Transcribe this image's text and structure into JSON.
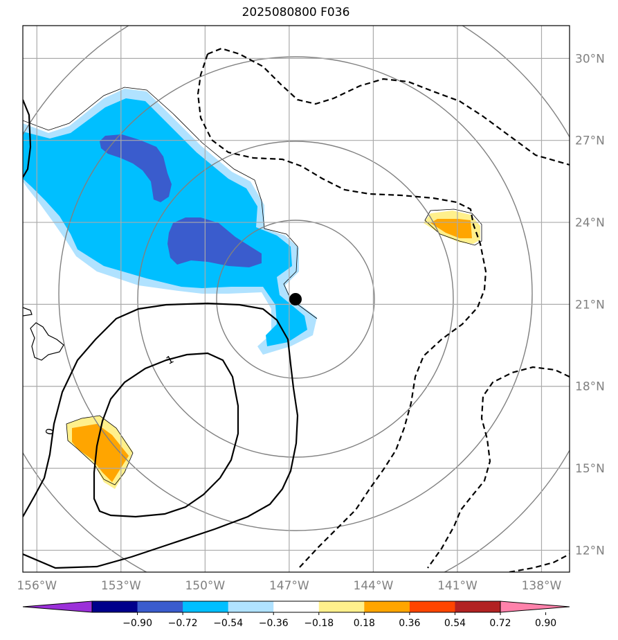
{
  "title": "2025080800 F036",
  "chart_data": {
    "type": "map",
    "title": "2025080800 F036",
    "lon_range": [
      -156.5,
      -137.0
    ],
    "lat_range": [
      11.2,
      31.2
    ],
    "lon_ticks": [
      -156,
      -153,
      -150,
      -147,
      -144,
      -141,
      -138
    ],
    "lon_tick_labels": [
      "156°W",
      "153°W",
      "150°W",
      "147°W",
      "144°W",
      "141°W",
      "138°W"
    ],
    "lat_ticks": [
      12,
      15,
      18,
      21,
      24,
      27,
      30
    ],
    "lat_tick_labels": [
      "12°N",
      "15°N",
      "18°N",
      "21°N",
      "24°N",
      "27°N",
      "30°N"
    ],
    "grid": true,
    "center_marker": {
      "lon": -146.7,
      "lat": 21.2
    },
    "range_rings": {
      "count": 4,
      "center_lon": -146.7,
      "center_lat": 21.2
    },
    "contour_labels": [
      "1",
      "0"
    ],
    "colorbar": {
      "ticks": [
        "−0.90",
        "−0.72",
        "−0.54",
        "−0.36",
        "−0.18",
        "0.18",
        "0.36",
        "0.54",
        "0.72",
        "0.90"
      ],
      "colors": [
        "#9b30d9",
        "#00008b",
        "#3a5ccd",
        "#00bfff",
        "#b0e2ff",
        "#ffffff",
        "#fff08c",
        "#ffa500",
        "#ff4500",
        "#b22222",
        "#ff82ab"
      ],
      "extend": "both"
    }
  }
}
